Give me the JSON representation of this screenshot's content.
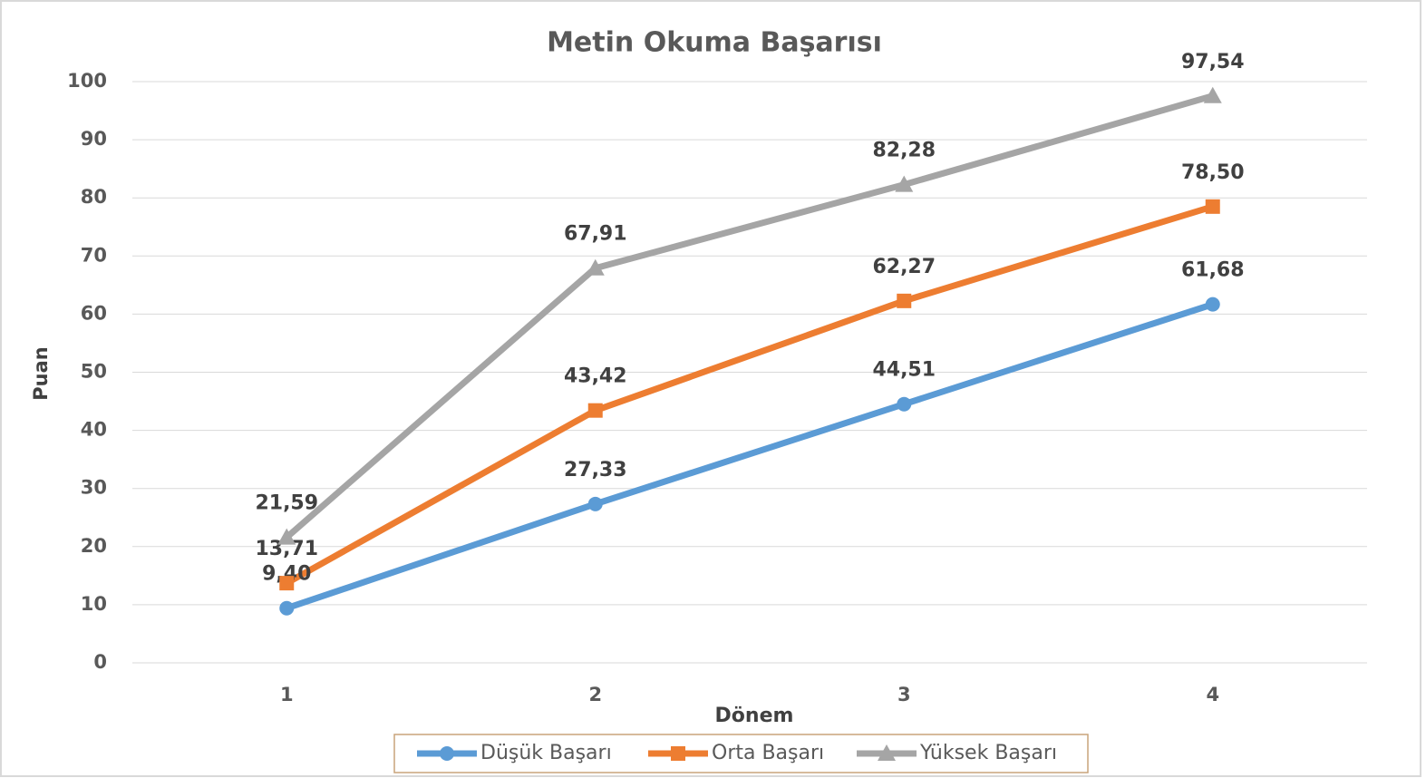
{
  "chart_data": {
    "type": "line",
    "title": "Metin Okuma Başarısı",
    "x_label": "Dönem",
    "y_label": "Puan",
    "categories": [
      "1",
      "2",
      "3",
      "4"
    ],
    "series": [
      {
        "name": "Düşük Başarı",
        "color": "#5b9bd5",
        "marker": "circle",
        "values": [
          9.4,
          27.33,
          44.51,
          61.68
        ],
        "value_labels": [
          "9,40",
          "27,33",
          "44,51",
          "61,68"
        ]
      },
      {
        "name": "Orta Başarı",
        "color": "#ed7d31",
        "marker": "square",
        "values": [
          13.71,
          43.42,
          62.27,
          78.5
        ],
        "value_labels": [
          "13,71",
          "43,42",
          "62,27",
          "78,50"
        ]
      },
      {
        "name": "Yüksek Başarı",
        "color": "#a5a5a5",
        "marker": "triangle",
        "values": [
          21.59,
          67.91,
          82.28,
          97.54
        ],
        "value_labels": [
          "21,59",
          "67,91",
          "82,28",
          "97,54"
        ]
      }
    ],
    "ylim": [
      0,
      100
    ],
    "yticks": [
      0,
      10,
      20,
      30,
      40,
      50,
      60,
      70,
      80,
      90,
      100
    ],
    "grid": true,
    "legend": "bottom"
  }
}
